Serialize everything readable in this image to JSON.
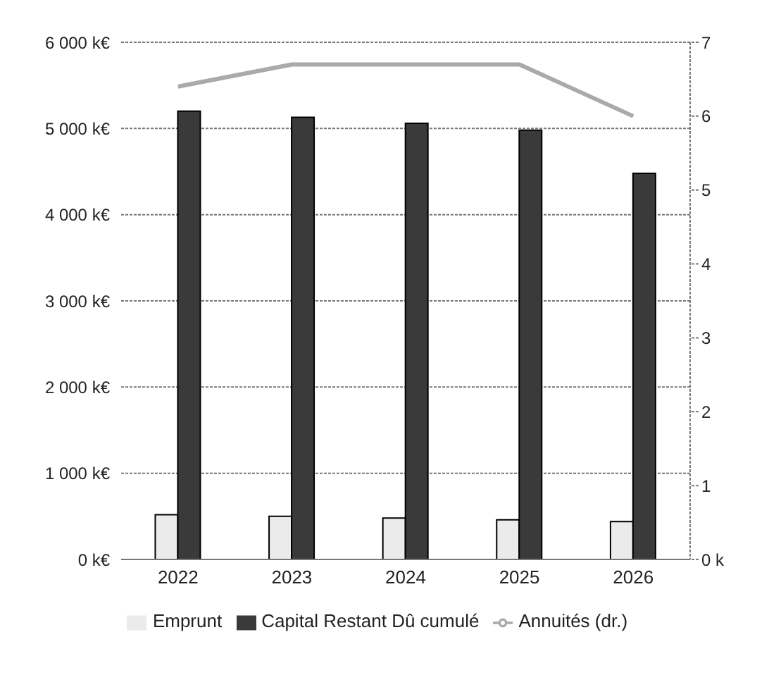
{
  "chart_data": {
    "type": "bar",
    "categories": [
      "2022",
      "2023",
      "2024",
      "2025",
      "2026"
    ],
    "series": [
      {
        "name": "Emprunt",
        "color": "#ebebeb",
        "values": [
          520,
          500,
          480,
          460,
          440
        ]
      },
      {
        "name": "Capital Restant Dû cumulé",
        "color": "#3a3a3a",
        "values": [
          5200,
          5130,
          5060,
          4980,
          4480
        ]
      },
      {
        "name": "Annuités (dr.)",
        "type": "line",
        "axis": "y2",
        "color": "#aaaaaa",
        "values": [
          6.4,
          6.7,
          6.7,
          6.7,
          6.0
        ]
      }
    ],
    "ylim": [
      0,
      6000
    ],
    "yticks": [
      {
        "value": 0,
        "label": "0 k€"
      },
      {
        "value": 1000,
        "label": "1 000 k€"
      },
      {
        "value": 2000,
        "label": "2 000 k€"
      },
      {
        "value": 3000,
        "label": "3 000 k€"
      },
      {
        "value": 4000,
        "label": "4 000 k€"
      },
      {
        "value": 5000,
        "label": "5 000 k€"
      },
      {
        "value": 6000,
        "label": "6 000 k€"
      }
    ],
    "y2lim": [
      0,
      7
    ],
    "y2ticks": [
      {
        "value": 0,
        "label": "0 k"
      },
      1,
      2,
      3,
      4,
      5,
      6,
      7
    ],
    "grid": "y",
    "legend": "bottom",
    "marker": "none"
  }
}
